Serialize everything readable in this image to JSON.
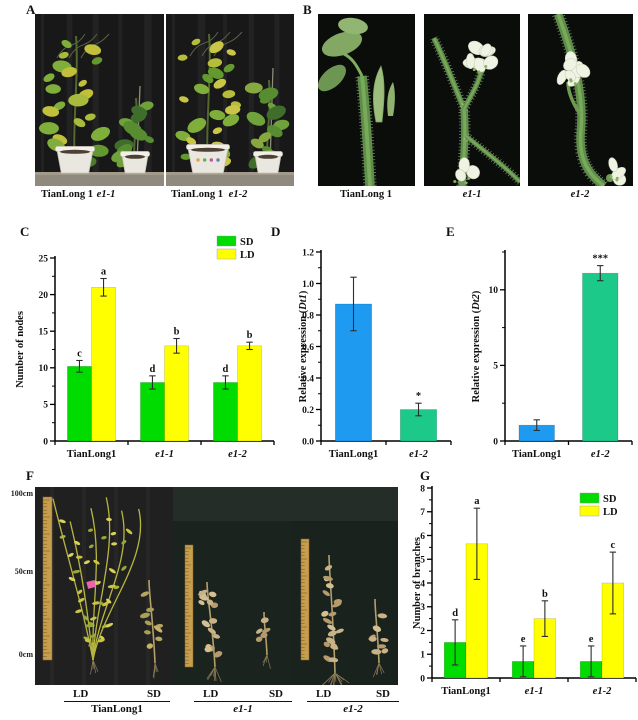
{
  "panels": {
    "a": {
      "label": "A",
      "photo1": {
        "label1": "TianLong 1",
        "label2": "e1-1"
      },
      "photo2": {
        "label1": "TianLong 1",
        "label2": "e1-2"
      }
    },
    "b": {
      "label": "B",
      "photo1": {
        "label": "TianLong 1"
      },
      "photo2": {
        "label": "e1-1"
      },
      "photo3": {
        "label": "e1-2"
      }
    },
    "c": {
      "label": "C"
    },
    "d": {
      "label": "D"
    },
    "e": {
      "label": "E"
    },
    "f": {
      "label": "F",
      "scale_top": "100cm",
      "scale_mid": "50cm",
      "scale_bottom": "0cm",
      "group1": {
        "c1": "LD",
        "c2": "SD",
        "name": "TianLong1"
      },
      "group2": {
        "c1": "LD",
        "c2": "SD",
        "name": "e1-1"
      },
      "group3": {
        "c1": "LD",
        "c2": "SD",
        "name": "e1-2"
      }
    },
    "g": {
      "label": "G"
    }
  },
  "colors": {
    "sd_green": "#00dc00",
    "ld_yellow": "#ffff00",
    "bar_blue": "#1e9bf0",
    "bar_green": "#1cc988"
  },
  "chart_data": [
    {
      "panel": "C",
      "type": "bar",
      "ylabel": "Number of nodes",
      "ylim": [
        0,
        25
      ],
      "ytick": 5,
      "yminor": 2.5,
      "ydecimals": 0,
      "grid": false,
      "legend_position": "top-right",
      "categories": [
        {
          "text": "TianLong1",
          "italic": false
        },
        {
          "text": "e1-1",
          "italic": true
        },
        {
          "text": "e1-2",
          "italic": true
        }
      ],
      "series": [
        {
          "name": "SD",
          "color": "#00dc00",
          "values": [
            10.2,
            8,
            8
          ],
          "errors": [
            0.8,
            0.9,
            0.9
          ],
          "sig": [
            "c",
            "d",
            "d"
          ]
        },
        {
          "name": "LD",
          "color": "#ffff00",
          "values": [
            21,
            13,
            13
          ],
          "errors": [
            1.2,
            1,
            0.5
          ],
          "sig": [
            "a",
            "b",
            "b"
          ]
        }
      ],
      "legend": [
        {
          "label": "SD",
          "color": "#00dc00"
        },
        {
          "label": "LD",
          "color": "#ffff00"
        }
      ]
    },
    {
      "panel": "D",
      "type": "bar",
      "ylabel": "Relative expression (Dt1)",
      "ylabel_italic": "Dt1",
      "ylim": [
        0,
        1.2
      ],
      "ytick": 0.2,
      "yminor": 0.1,
      "ydecimals": 1,
      "grid": false,
      "categories": [
        {
          "text": "TianLong1",
          "italic": false
        },
        {
          "text": "e1-2",
          "italic": true
        }
      ],
      "series": [
        {
          "name": "expression",
          "colors": [
            "#1e9bf0",
            "#1cc988"
          ],
          "values": [
            0.87,
            0.2
          ],
          "errors": [
            0.17,
            0.04
          ],
          "sig": [
            "",
            "*"
          ]
        }
      ]
    },
    {
      "panel": "E",
      "type": "bar",
      "ylabel": "Relative expression (Dt2)",
      "ylabel_italic": "Dt2",
      "ylim": [
        0,
        12.5
      ],
      "ytick": 5,
      "yminor": 2.5,
      "ydecimals": 0,
      "grid": false,
      "categories": [
        {
          "text": "TianLong1",
          "italic": false
        },
        {
          "text": "e1-2",
          "italic": true
        }
      ],
      "series": [
        {
          "name": "expression",
          "colors": [
            "#1e9bf0",
            "#1cc988"
          ],
          "values": [
            1.05,
            11.1
          ],
          "errors": [
            0.35,
            0.5
          ],
          "sig": [
            "",
            "***"
          ]
        }
      ]
    },
    {
      "panel": "G",
      "type": "bar",
      "ylabel": "Number of branches",
      "ylim": [
        0,
        8
      ],
      "ytick": 1,
      "yminor": 0.5,
      "ydecimals": 0,
      "grid": false,
      "legend_position": "top-right",
      "categories": [
        {
          "text": "TianLong1",
          "italic": false
        },
        {
          "text": "e1-1",
          "italic": true
        },
        {
          "text": "e1-2",
          "italic": true
        }
      ],
      "series": [
        {
          "name": "SD",
          "color": "#00dc00",
          "values": [
            1.5,
            0.7,
            0.7
          ],
          "errors": [
            0.95,
            0.65,
            0.65
          ],
          "sig": [
            "d",
            "e",
            "e"
          ]
        },
        {
          "name": "LD",
          "color": "#ffff00",
          "values": [
            5.65,
            2.5,
            4
          ],
          "errors": [
            1.5,
            0.75,
            1.3
          ],
          "sig": [
            "a",
            "b",
            "c"
          ]
        }
      ],
      "legend": [
        {
          "label": "SD",
          "color": "#00dc00"
        },
        {
          "label": "LD",
          "color": "#ffff00"
        }
      ]
    }
  ]
}
